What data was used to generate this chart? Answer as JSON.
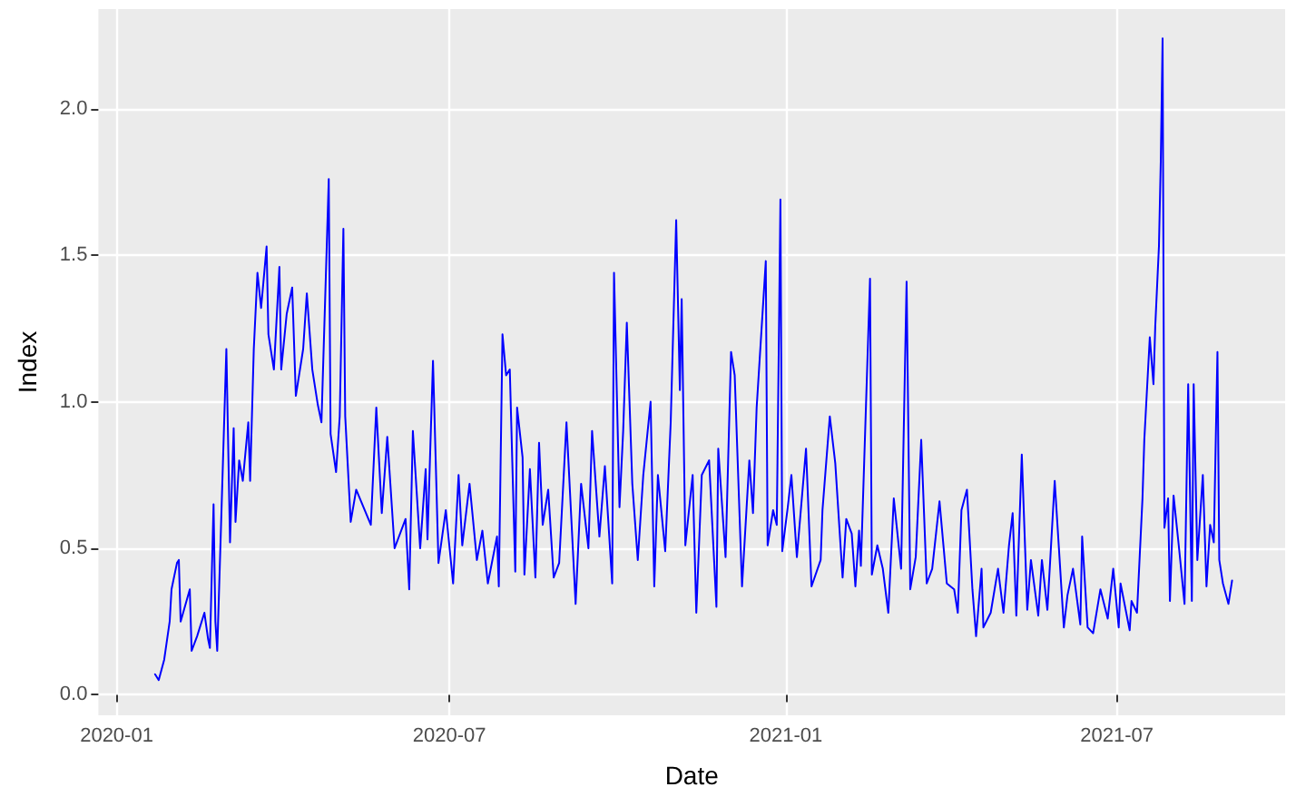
{
  "chart_data": {
    "type": "line",
    "xlabel": "Date",
    "ylabel": "Index",
    "color": "#0000ff",
    "grid": true,
    "marker": "none",
    "line_style": "solid",
    "xlim": [
      "2019-12-22",
      "2021-10-01"
    ],
    "xticks": [
      {
        "value": "2020-01-01",
        "label": "2020-01"
      },
      {
        "value": "2020-07-01",
        "label": "2020-07"
      },
      {
        "value": "2021-01-01",
        "label": "2021-01"
      },
      {
        "value": "2021-07-01",
        "label": "2021-07"
      }
    ],
    "ylim": [
      -0.07,
      2.34
    ],
    "yticks": [
      {
        "value": 0,
        "label": "0.0"
      },
      {
        "value": 0.5,
        "label": "0.5"
      },
      {
        "value": 1,
        "label": "1.0"
      },
      {
        "value": 1.5,
        "label": "1.5"
      },
      {
        "value": 2,
        "label": "2.0"
      }
    ],
    "x": [
      "2020-01-22",
      "2020-01-24",
      "2020-01-27",
      "2020-01-30",
      "2020-01-31",
      "2020-02-03",
      "2020-02-04",
      "2020-02-05",
      "2020-02-10",
      "2020-02-11",
      "2020-02-14",
      "2020-02-18",
      "2020-02-20",
      "2020-02-21",
      "2020-02-23",
      "2020-02-24",
      "2020-02-25",
      "2020-02-27",
      "2020-03-01",
      "2020-03-03",
      "2020-03-05",
      "2020-03-06",
      "2020-03-08",
      "2020-03-10",
      "2020-03-13",
      "2020-03-14",
      "2020-03-16",
      "2020-03-18",
      "2020-03-20",
      "2020-03-23",
      "2020-03-24",
      "2020-03-27",
      "2020-03-30",
      "2020-03-31",
      "2020-04-03",
      "2020-04-06",
      "2020-04-08",
      "2020-04-12",
      "2020-04-14",
      "2020-04-17",
      "2020-04-20",
      "2020-04-22",
      "2020-04-26",
      "2020-04-27",
      "2020-04-30",
      "2020-05-02",
      "2020-05-04",
      "2020-05-05",
      "2020-05-08",
      "2020-05-11",
      "2020-05-19",
      "2020-05-22",
      "2020-05-25",
      "2020-05-28",
      "2020-06-01",
      "2020-06-07",
      "2020-06-09",
      "2020-06-11",
      "2020-06-15",
      "2020-06-18",
      "2020-06-19",
      "2020-06-22",
      "2020-06-25",
      "2020-06-29",
      "2020-07-03",
      "2020-07-06",
      "2020-07-08",
      "2020-07-12",
      "2020-07-16",
      "2020-07-19",
      "2020-07-22",
      "2020-07-27",
      "2020-07-28",
      "2020-07-30",
      "2020-08-01",
      "2020-08-03",
      "2020-08-06",
      "2020-08-07",
      "2020-08-10",
      "2020-08-11",
      "2020-08-14",
      "2020-08-17",
      "2020-08-19",
      "2020-08-21",
      "2020-08-24",
      "2020-08-27",
      "2020-08-30",
      "2020-09-03",
      "2020-09-08",
      "2020-09-11",
      "2020-09-15",
      "2020-09-17",
      "2020-09-21",
      "2020-09-24",
      "2020-09-28",
      "2020-09-29",
      "2020-10-02",
      "2020-10-04",
      "2020-10-06",
      "2020-10-09",
      "2020-10-12",
      "2020-10-15",
      "2020-10-19",
      "2020-10-21",
      "2020-10-23",
      "2020-10-27",
      "2020-10-30",
      "2020-11-02",
      "2020-11-04",
      "2020-11-05",
      "2020-11-07",
      "2020-11-11",
      "2020-11-13",
      "2020-11-16",
      "2020-11-20",
      "2020-11-24",
      "2020-11-25",
      "2020-11-29",
      "2020-12-02",
      "2020-12-04",
      "2020-12-08",
      "2020-12-12",
      "2020-12-14",
      "2020-12-16",
      "2020-12-21",
      "2020-12-22",
      "2020-12-25",
      "2020-12-27",
      "2020-12-29",
      "2020-12-30",
      "2021-01-02",
      "2021-01-04",
      "2021-01-07",
      "2021-01-12",
      "2021-01-15",
      "2021-01-20",
      "2021-01-21",
      "2021-01-25",
      "2021-01-28",
      "2021-02-01",
      "2021-02-03",
      "2021-02-06",
      "2021-02-08",
      "2021-02-10",
      "2021-02-11",
      "2021-02-16",
      "2021-02-17",
      "2021-02-20",
      "2021-02-23",
      "2021-02-26",
      "2021-03-01",
      "2021-03-05",
      "2021-03-08",
      "2021-03-10",
      "2021-03-13",
      "2021-03-16",
      "2021-03-19",
      "2021-03-22",
      "2021-03-26",
      "2021-03-30",
      "2021-04-03",
      "2021-04-05",
      "2021-04-07",
      "2021-04-10",
      "2021-04-13",
      "2021-04-15",
      "2021-04-18",
      "2021-04-19",
      "2021-04-23",
      "2021-04-27",
      "2021-04-30",
      "2021-05-03",
      "2021-05-05",
      "2021-05-07",
      "2021-05-10",
      "2021-05-13",
      "2021-05-15",
      "2021-05-19",
      "2021-05-21",
      "2021-05-24",
      "2021-05-26",
      "2021-05-28",
      "2021-06-02",
      "2021-06-04",
      "2021-06-07",
      "2021-06-11",
      "2021-06-12",
      "2021-06-15",
      "2021-06-18",
      "2021-06-22",
      "2021-06-26",
      "2021-06-29",
      "2021-07-02",
      "2021-07-03",
      "2021-07-08",
      "2021-07-09",
      "2021-07-12",
      "2021-07-15",
      "2021-07-16",
      "2021-07-19",
      "2021-07-21",
      "2021-07-22",
      "2021-07-24",
      "2021-07-25",
      "2021-07-26",
      "2021-07-27",
      "2021-07-29",
      "2021-07-30",
      "2021-08-01",
      "2021-08-04",
      "2021-08-07",
      "2021-08-09",
      "2021-08-11",
      "2021-08-12",
      "2021-08-14",
      "2021-08-17",
      "2021-08-19",
      "2021-08-21",
      "2021-08-23",
      "2021-08-25",
      "2021-08-26",
      "2021-08-28",
      "2021-08-31",
      "2021-09-02"
    ],
    "values": [
      0.07,
      0.05,
      0.12,
      0.25,
      0.36,
      0.45,
      0.46,
      0.25,
      0.36,
      0.15,
      0.2,
      0.28,
      0.19,
      0.16,
      0.65,
      0.25,
      0.15,
      0.56,
      1.18,
      0.52,
      0.91,
      0.59,
      0.8,
      0.73,
      0.93,
      0.73,
      1.18,
      1.44,
      1.32,
      1.53,
      1.23,
      1.11,
      1.46,
      1.11,
      1.3,
      1.39,
      1.02,
      1.18,
      1.37,
      1.11,
      0.99,
      0.93,
      1.76,
      0.89,
      0.76,
      0.95,
      1.59,
      0.95,
      0.59,
      0.7,
      0.58,
      0.98,
      0.62,
      0.88,
      0.5,
      0.6,
      0.36,
      0.9,
      0.5,
      0.77,
      0.53,
      1.14,
      0.45,
      0.63,
      0.38,
      0.75,
      0.51,
      0.72,
      0.46,
      0.56,
      0.38,
      0.54,
      0.37,
      1.23,
      1.09,
      1.11,
      0.42,
      0.98,
      0.81,
      0.41,
      0.77,
      0.4,
      0.86,
      0.58,
      0.7,
      0.4,
      0.45,
      0.93,
      0.31,
      0.72,
      0.5,
      0.9,
      0.54,
      0.78,
      0.38,
      1.44,
      0.64,
      0.9,
      1.27,
      0.72,
      0.46,
      0.75,
      1.0,
      0.37,
      0.75,
      0.49,
      0.93,
      1.62,
      1.04,
      1.35,
      0.51,
      0.75,
      0.28,
      0.75,
      0.8,
      0.3,
      0.84,
      0.47,
      1.17,
      1.09,
      0.37,
      0.8,
      0.62,
      0.98,
      1.48,
      0.51,
      0.63,
      0.58,
      1.69,
      0.49,
      0.64,
      0.75,
      0.47,
      0.84,
      0.37,
      0.46,
      0.63,
      0.95,
      0.79,
      0.4,
      0.6,
      0.55,
      0.37,
      0.56,
      0.44,
      1.42,
      0.41,
      0.51,
      0.43,
      0.28,
      0.67,
      0.43,
      1.41,
      0.36,
      0.47,
      0.87,
      0.38,
      0.43,
      0.66,
      0.38,
      0.36,
      0.28,
      0.63,
      0.7,
      0.36,
      0.2,
      0.43,
      0.23,
      0.28,
      0.43,
      0.28,
      0.51,
      0.62,
      0.27,
      0.82,
      0.29,
      0.46,
      0.27,
      0.46,
      0.29,
      0.51,
      0.73,
      0.23,
      0.34,
      0.43,
      0.24,
      0.54,
      0.23,
      0.21,
      0.36,
      0.26,
      0.43,
      0.23,
      0.38,
      0.22,
      0.32,
      0.28,
      0.67,
      0.87,
      1.22,
      1.06,
      1.26,
      1.53,
      1.82,
      2.24,
      0.57,
      0.67,
      0.32,
      0.68,
      0.5,
      0.31,
      1.06,
      0.32,
      1.06,
      0.46,
      0.75,
      0.37,
      0.58,
      0.52,
      1.17,
      0.46,
      0.38,
      0.31,
      0.39
    ]
  }
}
